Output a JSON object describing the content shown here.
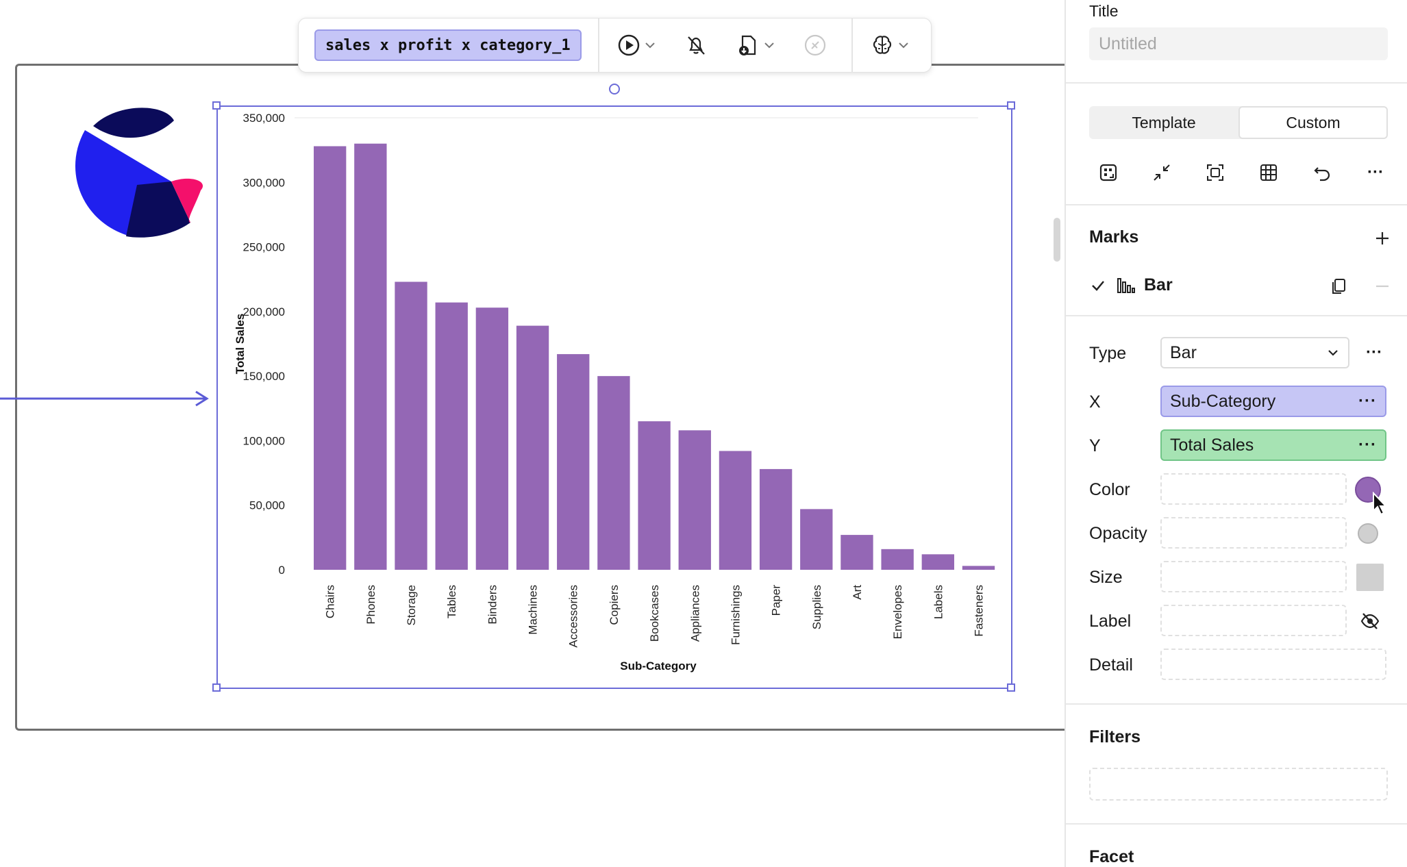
{
  "toolbar": {
    "query_label": "sales x profit x category_1",
    "run_icon": "play-icon",
    "alert_icon": "bell-off-icon",
    "download_icon": "file-download-icon",
    "disabled_icon": "slash-circle-icon",
    "ai_icon": "brain-icon"
  },
  "chart_data": {
    "type": "bar",
    "xlabel": "Sub-Category",
    "ylabel": "Total Sales",
    "ylim": [
      0,
      350000
    ],
    "yticks": [
      0,
      50000,
      100000,
      150000,
      200000,
      250000,
      300000,
      350000
    ],
    "ytick_labels": [
      "0",
      "50,000",
      "100,000",
      "150,000",
      "200,000",
      "250,000",
      "300,000",
      "350,000"
    ],
    "categories": [
      "Chairs",
      "Phones",
      "Storage",
      "Tables",
      "Binders",
      "Machines",
      "Accessories",
      "Copiers",
      "Bookcases",
      "Appliances",
      "Furnishings",
      "Paper",
      "Supplies",
      "Art",
      "Envelopes",
      "Labels",
      "Fasteners"
    ],
    "values": [
      328000,
      330000,
      223000,
      207000,
      203000,
      189000,
      167000,
      150000,
      115000,
      108000,
      92000,
      78000,
      47000,
      27000,
      16000,
      12000,
      3000
    ],
    "bar_color": "#9467b5",
    "grid": false
  },
  "panel": {
    "title_label": "Title",
    "title_placeholder": "Untitled",
    "tabs": [
      "Template",
      "Custom"
    ],
    "active_tab": "Custom",
    "marks_heading": "Marks",
    "mark_name": "Bar",
    "type_label": "Type",
    "type_value": "Bar",
    "x_label": "X",
    "x_value": "Sub-Category",
    "x_color": "#c6c6f5",
    "y_label": "Y",
    "y_value": "Total Sales",
    "y_color": "#a6e3b3",
    "color_label": "Color",
    "color_swatch": "#9467b5",
    "opacity_label": "Opacity",
    "size_label": "Size",
    "label_label": "Label",
    "detail_label": "Detail",
    "filters_heading": "Filters",
    "facet_heading": "Facet",
    "more_glyph": "···"
  }
}
